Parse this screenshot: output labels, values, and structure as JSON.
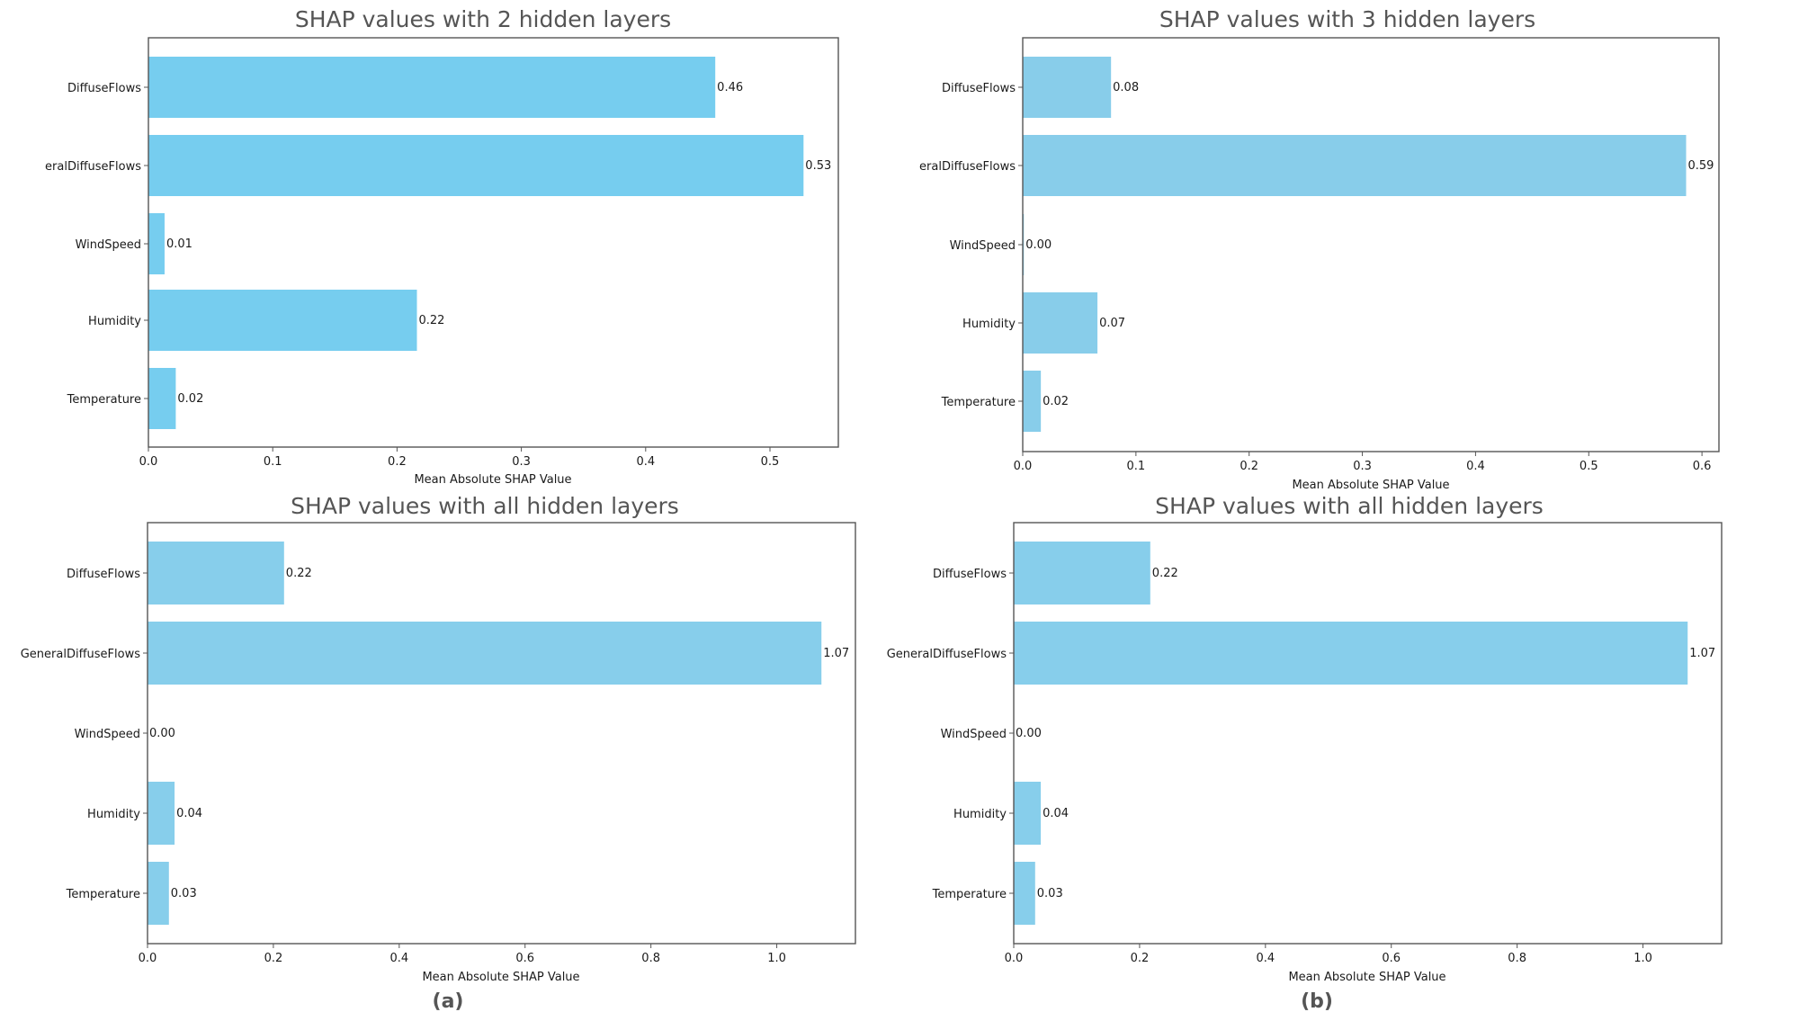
{
  "chart_data": [
    {
      "type": "bar",
      "orientation": "horizontal",
      "title": "SHAP values with 2 hidden layers",
      "xlabel": "Mean Absolute SHAP Value",
      "categories": [
        "DiffuseFlows",
        "eralDiffuseFlows",
        "WindSpeed",
        "Humidity",
        "Temperature"
      ],
      "values": [
        0.456,
        0.527,
        0.013,
        0.216,
        0.022
      ],
      "value_labels": [
        "0.46",
        "0.53",
        "0.01",
        "0.22",
        "0.02"
      ],
      "xlim": [
        0,
        0.555
      ],
      "xticks": [
        0.0,
        0.1,
        0.2,
        0.3,
        0.4,
        0.5
      ],
      "xtick_labels": [
        "0.0",
        "0.1",
        "0.2",
        "0.3",
        "0.4",
        "0.5"
      ],
      "bar_color": "#76CDEF",
      "grid": false
    },
    {
      "type": "bar",
      "orientation": "horizontal",
      "title": "SHAP values with 3 hidden layers",
      "xlabel": "Mean Absolute SHAP Value",
      "categories": [
        "DiffuseFlows",
        "eralDiffuseFlows",
        "WindSpeed",
        "Humidity",
        "Temperature"
      ],
      "values": [
        0.078,
        0.586,
        0.001,
        0.066,
        0.016
      ],
      "value_labels": [
        "0.08",
        "0.59",
        "0.00",
        "0.07",
        "0.02"
      ],
      "xlim": [
        0,
        0.615
      ],
      "xticks": [
        0.0,
        0.1,
        0.2,
        0.3,
        0.4,
        0.5,
        0.6
      ],
      "xtick_labels": [
        "0.0",
        "0.1",
        "0.2",
        "0.3",
        "0.4",
        "0.5",
        "0.6"
      ],
      "bar_color": "#88CDEA",
      "grid": false
    },
    {
      "type": "bar",
      "orientation": "horizontal",
      "title": "SHAP values with all hidden layers",
      "xlabel": "Mean Absolute SHAP Value",
      "categories": [
        "DiffuseFlows",
        "GeneralDiffuseFlows",
        "WindSpeed",
        "Humidity",
        "Temperature"
      ],
      "values": [
        0.217,
        1.071,
        0.0,
        0.043,
        0.034
      ],
      "value_labels": [
        "0.22",
        "1.07",
        "0.00",
        "0.04",
        "0.03"
      ],
      "xlim": [
        0,
        1.125
      ],
      "xticks": [
        0.0,
        0.2,
        0.4,
        0.6,
        0.8,
        1.0
      ],
      "xtick_labels": [
        "0.0",
        "0.2",
        "0.4",
        "0.6",
        "0.8",
        "1.0"
      ],
      "bar_color": "#87CEEB",
      "grid": false
    },
    {
      "type": "bar",
      "orientation": "horizontal",
      "title": "SHAP values with all hidden layers",
      "xlabel": "Mean Absolute SHAP Value",
      "categories": [
        "DiffuseFlows",
        "GeneralDiffuseFlows",
        "WindSpeed",
        "Humidity",
        "Temperature"
      ],
      "values": [
        0.217,
        1.071,
        0.0,
        0.043,
        0.034
      ],
      "value_labels": [
        "0.22",
        "1.07",
        "0.00",
        "0.04",
        "0.03"
      ],
      "xlim": [
        0,
        1.125
      ],
      "xticks": [
        0.0,
        0.2,
        0.4,
        0.6,
        0.8,
        1.0
      ],
      "xtick_labels": [
        "0.0",
        "0.2",
        "0.4",
        "0.6",
        "0.8",
        "1.0"
      ],
      "bar_color": "#87CEEB",
      "grid": false
    }
  ],
  "panel_labels": [
    "(a)",
    "(b)"
  ]
}
